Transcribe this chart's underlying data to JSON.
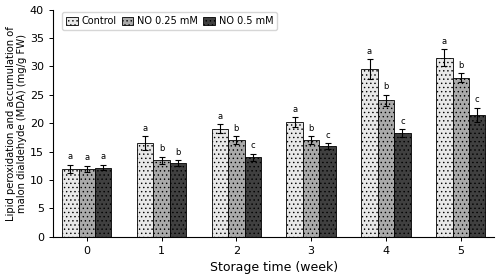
{
  "weeks": [
    0,
    1,
    2,
    3,
    4,
    5
  ],
  "control_values": [
    12.0,
    16.5,
    19.0,
    20.2,
    29.5,
    31.5
  ],
  "no025_values": [
    12.0,
    13.5,
    17.0,
    17.0,
    24.0,
    28.0
  ],
  "no05_values": [
    12.2,
    13.0,
    14.0,
    16.0,
    18.2,
    21.5
  ],
  "control_err": [
    0.7,
    1.2,
    0.8,
    0.9,
    1.8,
    1.5
  ],
  "no025_err": [
    0.5,
    0.6,
    0.7,
    0.7,
    1.0,
    0.8
  ],
  "no05_err": [
    0.5,
    0.5,
    0.6,
    0.5,
    0.7,
    1.2
  ],
  "control_letters": [
    "a",
    "a",
    "a",
    "a",
    "a",
    "a"
  ],
  "no025_letters": [
    "a",
    "b",
    "b",
    "b",
    "b",
    "b"
  ],
  "no05_letters": [
    "a",
    "b",
    "c",
    "c",
    "c",
    "c"
  ],
  "ylabel": "Lipid peroxidation and accumulation of\nmalon dialdehyde (MDA) (mg/g FW)",
  "xlabel": "Storage time (week)",
  "ylim": [
    0,
    40
  ],
  "yticks": [
    0,
    5,
    10,
    15,
    20,
    25,
    30,
    35,
    40
  ],
  "legend_labels": [
    "Control",
    "NO 0.25 mM",
    "NO 0.5 mM"
  ],
  "bar_width": 0.22,
  "control_color": "#e8e8e8",
  "no025_color": "#aaaaaa",
  "no05_color": "#404040",
  "edge_color": "black"
}
